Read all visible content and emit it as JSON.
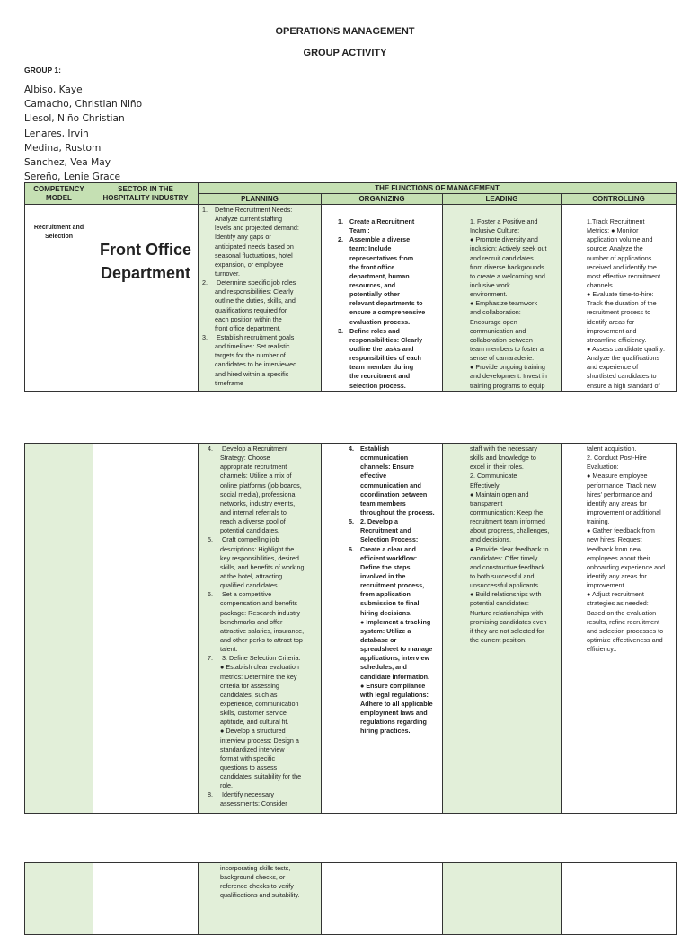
{
  "header": {
    "title": "OPERATIONS MANAGEMENT",
    "subtitle": "GROUP ACTIVITY",
    "group": "GROUP 1:"
  },
  "members": [
    "Albiso, Kaye",
    "Camacho, Christian Niño",
    "Llesol, Niño Christian",
    "Lenares, Irvin",
    "Medina, Rustom",
    "Sanchez, Vea May",
    "Sereño, Lenie Grace"
  ],
  "colors": {
    "header_green": "#c5e0b3",
    "cell_green": "#e2efd9"
  },
  "table": {
    "headers": {
      "competency": "COMPETENCY MODEL",
      "sector": "SECTOR IN THE HOSPITALITY INDUSTRY",
      "functions": "THE FUNCTIONS OF MANAGEMENT",
      "planning": "PLANNING",
      "organizing": "ORGANIZING",
      "leading": "LEADING",
      "controlling": "CONTROLLING"
    },
    "competency": [
      "Recruitment and",
      "Selection"
    ],
    "sector": [
      "Front Office",
      "Department"
    ],
    "pages": [
      {
        "planning": [
          "1.|Define Recruitment Needs:",
          "Analyze current staffing",
          "levels and projected demand:",
          "Identify any gaps or",
          "anticipated needs based on",
          "seasonal fluctuations, hotel",
          "expansion, or employee",
          "turnover.",
          "2.| Determine specific job roles",
          "and responsibilities: Clearly",
          "outline the duties, skills, and",
          "qualifications required for",
          "each position within the",
          "front office department.",
          "3.| Establish recruitment goals",
          "and timelines: Set realistic",
          "targets for the number of",
          "candidates to be interviewed",
          "and hired within a specific",
          "timeframe"
        ],
        "organizing": [
          "1.|Create a Recruitment",
          "Team :",
          "2.|Assemble a diverse",
          "team: Include",
          "representatives from",
          "the front office",
          "department, human",
          "resources, and",
          "potentially other",
          "relevant departments to",
          "ensure a comprehensive",
          "evaluation process.",
          "3.|Define roles and",
          "responsibilities: Clearly",
          "outline the tasks and",
          "responsibilities of each",
          "team member during",
          "the recruitment and",
          "selection process."
        ],
        "leading": [
          "1. Foster a Positive and",
          "Inclusive Culture:",
          " ● Promote diversity and",
          "inclusion: Actively seek out",
          "and recruit candidates",
          "from diverse backgrounds",
          "to create a welcoming and",
          "inclusive work",
          "environment.",
          " ● Emphasize teamwork",
          "and collaboration:",
          "Encourage open",
          "communication and",
          "collaboration between",
          "team members to foster a",
          "sense of camaraderie.",
          "● Provide ongoing training",
          "and development: Invest in",
          "training programs to equip"
        ],
        "controlling": [
          "1.Track Recruitment",
          "Metrics: ● Monitor",
          "application volume and",
          "source: Analyze the",
          "number of applications",
          "received and identify the",
          "most effective recruitment",
          "channels.",
          "● Evaluate time-to-hire:",
          "Track the duration of the",
          "recruitment process to",
          "identify areas for",
          "improvement and",
          "streamline efficiency.",
          "● Assess candidate quality:",
          "Analyze the qualifications",
          "and experience of",
          "shortlisted candidates to",
          "ensure a high standard of"
        ]
      },
      {
        "planning": [
          "4.| Develop a Recruitment",
          "Strategy:  Choose",
          "appropriate recruitment",
          "channels: Utilize a mix of",
          "online platforms (job boards,",
          "social media), professional",
          "networks, industry events,",
          "and internal referrals to",
          "reach a diverse pool of",
          "potential candidates.",
          "5.| Craft compelling job",
          "descriptions: Highlight the",
          "key responsibilities, desired",
          "skills, and benefits of working",
          "at the hotel, attracting",
          "qualified candidates.",
          "6.| Set a competitive",
          "compensation and benefits",
          "package: Research industry",
          "benchmarks and offer",
          "attractive salaries, insurance,",
          "and other perks to attract top",
          "talent.",
          "7.| 3. Define Selection Criteria:",
          "● Establish clear evaluation",
          "metrics: Determine the key",
          "criteria for assessing",
          "candidates, such as",
          "experience, communication",
          "skills, customer service",
          "aptitude, and cultural fit.",
          "● Develop a structured",
          "interview process: Design a",
          "standardized interview",
          "format with specific",
          "questions to assess",
          "candidates' suitability for the",
          "role.",
          "8.| Identify necessary",
          "assessments: Consider"
        ],
        "organizing": [
          "4.|Establish",
          "communication",
          "channels: Ensure",
          "effective",
          "communication and",
          "coordination between",
          "team members",
          "throughout the process.",
          "5.|2. Develop a",
          "Recruitment and",
          "Selection Process:",
          "6.|Create a clear and",
          "efficient workflow:",
          "Define the steps",
          "involved in the",
          "recruitment process,",
          "from application",
          "submission to final",
          "hiring decisions.",
          "● Implement a tracking",
          "system: Utilize a",
          "database or",
          "spreadsheet to manage",
          "applications, interview",
          "schedules, and",
          "candidate information.",
          "● Ensure compliance",
          "with legal regulations:",
          "Adhere to all applicable",
          "employment laws and",
          "regulations regarding",
          "hiring practices."
        ],
        "leading": [
          "staff with the necessary",
          "skills and knowledge to",
          "excel in their roles.",
          "2. Communicate",
          "Effectively:",
          "● Maintain open and",
          "transparent",
          "communication: Keep the",
          "recruitment team informed",
          "about progress, challenges,",
          "and decisions.",
          "● Provide clear feedback to",
          "candidates: Offer timely",
          "and constructive feedback",
          "to both successful and",
          "unsuccessful applicants.",
          " ● Build relationships with",
          "potential candidates:",
          "Nurture relationships with",
          "promising candidates even",
          "if they are not selected for",
          "the current position."
        ],
        "controlling": [
          "talent acquisition.",
          "2. Conduct Post-Hire",
          "Evaluation:",
          "● Measure employee",
          "performance: Track new",
          "hires' performance and",
          "identify any areas for",
          "improvement or additional",
          "training.",
          "● Gather feedback from",
          "new hires: Request",
          "feedback from new",
          "employees about their",
          "onboarding experience and",
          "identify any areas for",
          "improvement.",
          "● Adjust recruitment",
          "strategies as needed:",
          "Based on the evaluation",
          "results, refine recruitment",
          "and selection processes to",
          "optimize effectiveness and",
          "efficiency.."
        ]
      },
      {
        "planning": [
          "incorporating skills tests,",
          "background checks, or",
          "reference checks to verify",
          "qualifications and suitability."
        ],
        "organizing": [],
        "leading": [],
        "controlling": []
      }
    ]
  }
}
